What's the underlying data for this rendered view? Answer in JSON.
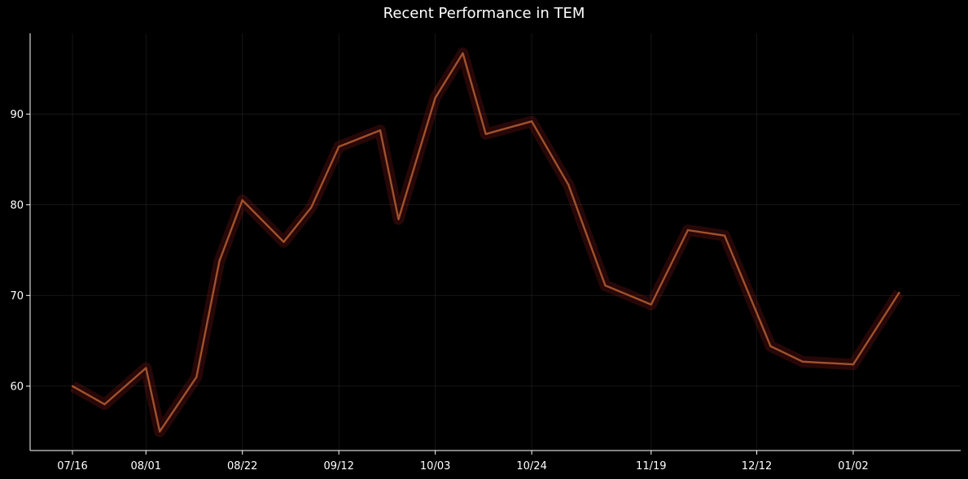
{
  "chart_data": {
    "type": "line",
    "title": "Recent Performance in TEM",
    "xlabel": "",
    "ylabel": "",
    "x": [
      "07/16",
      "07/23",
      "08/01",
      "08/04",
      "08/12",
      "08/17",
      "08/22",
      "08/31",
      "09/06",
      "09/12",
      "09/21",
      "09/25",
      "10/03",
      "10/09",
      "10/14",
      "10/24",
      "11/01",
      "11/09",
      "11/19",
      "11/27",
      "12/05",
      "12/15",
      "12/22",
      "01/02",
      "01/12"
    ],
    "series": [
      {
        "values": [
          60.0,
          58.0,
          62.0,
          55.0,
          61.0,
          73.8,
          80.5,
          75.9,
          79.7,
          86.4,
          88.2,
          78.4,
          91.8,
          96.7,
          87.8,
          89.2,
          82.2,
          71.1,
          69.0,
          77.2,
          76.6,
          64.4,
          62.7,
          62.4,
          70.3
        ]
      }
    ],
    "x_tick_labels": [
      "07/16",
      "08/01",
      "08/22",
      "09/12",
      "10/03",
      "10/24",
      "11/19",
      "12/12",
      "01/02"
    ],
    "y_ticks": [
      60,
      70,
      80,
      90
    ],
    "ylim": [
      52.9,
      98.9
    ],
    "grid": true,
    "colors": {
      "background": "#000000",
      "line": "#a0522d",
      "glow": "#b22222",
      "grid": "#333333",
      "axis": "#ffffff",
      "accent_red": "#ff0000",
      "accent_green": "#006400"
    }
  }
}
